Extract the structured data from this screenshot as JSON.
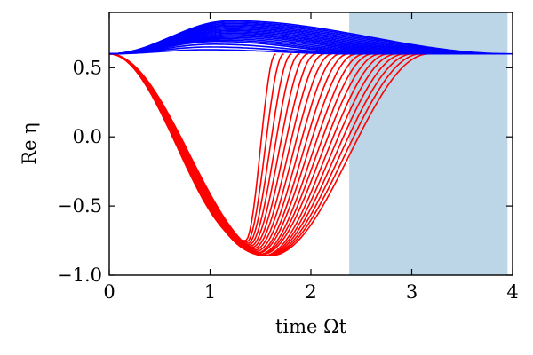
{
  "chart_data": {
    "type": "line",
    "xlabel": "time Ωt",
    "ylabel": "Re η",
    "xlim": [
      0,
      4
    ],
    "ylim": [
      -1.0,
      0.9
    ],
    "xticks": [
      0,
      1,
      2,
      3,
      4
    ],
    "xtick_labels": [
      "0",
      "1",
      "2",
      "3",
      "4"
    ],
    "yticks": [
      -1.0,
      -0.5,
      0.0,
      0.5
    ],
    "ytick_labels": [
      "−1.0",
      "−0.5",
      "0.0",
      "0.5"
    ],
    "grid": false,
    "shaded_region": {
      "x_start": 2.38,
      "x_end": 3.95,
      "color": "#bcd6e8"
    },
    "series_groups": [
      {
        "color": "#ff0000",
        "start": 0.6,
        "end": 0.6,
        "end_times": [
          1.65,
          1.73,
          1.81,
          1.89,
          1.97,
          2.05,
          2.13,
          2.21,
          2.29,
          2.37,
          2.45,
          2.53,
          2.61,
          2.69,
          2.77,
          2.85,
          2.93,
          3.01,
          3.09,
          3.17
        ],
        "min_values": [
          -0.75,
          -0.76,
          -0.77,
          -0.78,
          -0.79,
          -0.8,
          -0.81,
          -0.82,
          -0.83,
          -0.84,
          -0.84,
          -0.85,
          -0.85,
          -0.85,
          -0.86,
          -0.86,
          -0.86,
          -0.86,
          -0.86,
          -0.86
        ]
      },
      {
        "color": "#0000ff",
        "start": 0.6,
        "end": 0.6,
        "end_times": [
          2.4,
          2.49,
          2.58,
          2.67,
          2.76,
          2.85,
          2.94,
          3.03,
          3.12,
          3.21,
          3.3,
          3.39,
          3.48,
          3.57,
          3.66,
          3.75,
          3.84,
          3.93,
          4.0
        ],
        "peak_values": [
          0.63,
          0.65,
          0.67,
          0.69,
          0.7,
          0.71,
          0.72,
          0.73,
          0.74,
          0.75,
          0.76,
          0.77,
          0.78,
          0.79,
          0.8,
          0.81,
          0.82,
          0.83,
          0.84
        ]
      }
    ]
  }
}
